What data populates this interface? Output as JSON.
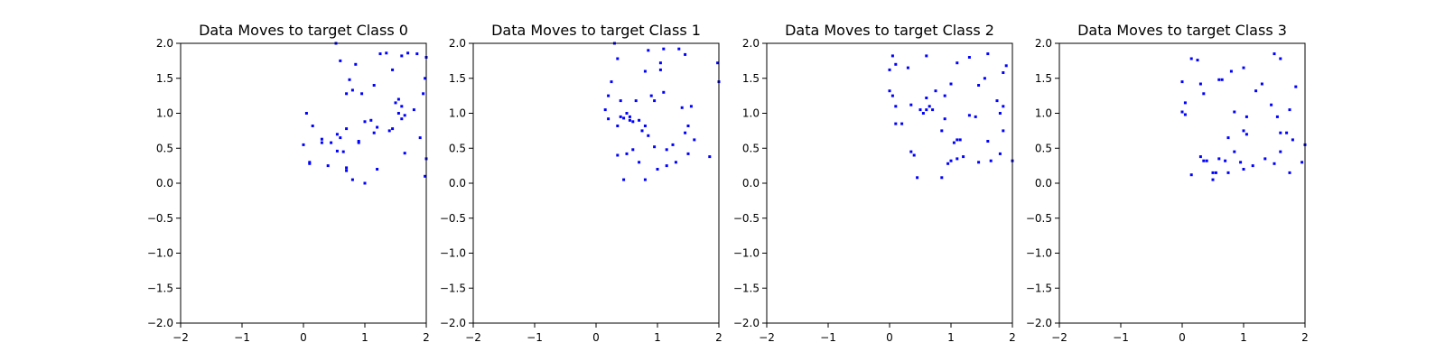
{
  "chart_data": [
    {
      "type": "scatter",
      "title": "Data Moves to target Class 0",
      "xlim": [
        -2,
        2
      ],
      "ylim": [
        -2,
        2
      ],
      "xticks": [
        "−2",
        "−1",
        "0",
        "1",
        "2"
      ],
      "yticks": [
        "2.0",
        "1.5",
        "1.0",
        "0.5",
        "0.0",
        "−0.5",
        "−1.0",
        "−1.5",
        "−2.0"
      ],
      "grid": false,
      "color": "#0000ff",
      "x": [
        0.53,
        0.6,
        0.7,
        0.75,
        1.1,
        1.15,
        1.35,
        1.45,
        1.55,
        1.6,
        1.7,
        1.85,
        2.0,
        1.98,
        0.05,
        0.15,
        0.1,
        0.3,
        0.45,
        0.55,
        0.65,
        0.8,
        0.85,
        0.7,
        0.95,
        1.0,
        1.15,
        1.25,
        1.4,
        1.55,
        1.6,
        1.65,
        1.8,
        1.9,
        2.0,
        0.0,
        0.4,
        0.6,
        0.7,
        0.9,
        1.0,
        1.2,
        1.5,
        1.65,
        1.95,
        0.1,
        0.3,
        0.55,
        0.7,
        0.8,
        0.9,
        1.2,
        1.6,
        1.98,
        1.45
      ],
      "y": [
        2.0,
        1.75,
        1.28,
        1.48,
        0.9,
        1.4,
        1.86,
        1.62,
        1.2,
        1.82,
        1.86,
        1.85,
        1.8,
        1.5,
        1.0,
        0.82,
        0.3,
        0.63,
        0.58,
        0.7,
        0.45,
        1.33,
        1.7,
        0.78,
        1.28,
        0.88,
        0.72,
        1.85,
        0.75,
        1.0,
        0.92,
        0.43,
        1.05,
        0.65,
        0.35,
        0.55,
        0.25,
        0.65,
        0.22,
        0.58,
        0.0,
        0.2,
        1.15,
        0.97,
        1.28,
        0.28,
        0.58,
        0.46,
        0.18,
        0.05,
        0.6,
        0.8,
        1.1,
        0.1,
        0.78
      ]
    },
    {
      "type": "scatter",
      "title": "Data Moves to target Class 1",
      "xlim": [
        -2,
        2
      ],
      "ylim": [
        -2,
        2
      ],
      "xticks": [
        "−2",
        "−1",
        "0",
        "1",
        "2"
      ],
      "yticks": [
        "2.0",
        "1.5",
        "1.0",
        "0.5",
        "0.0",
        "−0.5",
        "−1.0",
        "−1.5",
        "−2.0"
      ],
      "grid": false,
      "color": "#0000ff",
      "x": [
        0.3,
        0.35,
        0.8,
        0.85,
        1.05,
        1.1,
        1.35,
        1.45,
        1.98,
        2.0,
        0.15,
        0.2,
        0.4,
        0.5,
        0.55,
        0.65,
        0.7,
        0.8,
        0.9,
        0.95,
        1.05,
        1.1,
        1.4,
        1.5,
        0.2,
        0.35,
        0.45,
        0.55,
        0.6,
        0.75,
        0.85,
        0.95,
        1.15,
        1.25,
        1.45,
        1.55,
        1.6,
        1.85,
        0.25,
        0.45,
        0.5,
        0.6,
        0.8,
        1.0,
        1.3,
        1.5,
        0.35,
        0.7,
        1.15,
        0.4
      ],
      "y": [
        2.0,
        1.78,
        1.6,
        1.9,
        1.62,
        1.92,
        1.92,
        1.84,
        1.72,
        1.45,
        1.05,
        1.25,
        1.18,
        1.0,
        0.95,
        1.18,
        0.9,
        0.82,
        1.25,
        1.18,
        1.72,
        1.3,
        1.08,
        0.82,
        0.92,
        0.82,
        0.93,
        0.9,
        0.48,
        0.75,
        0.68,
        0.52,
        0.48,
        0.55,
        0.72,
        1.1,
        0.62,
        0.38,
        1.45,
        0.05,
        0.42,
        0.88,
        0.05,
        0.2,
        0.3,
        0.42,
        0.4,
        0.3,
        0.25,
        0.95
      ]
    },
    {
      "type": "scatter",
      "title": "Data Moves to target Class 2",
      "xlim": [
        -2,
        2
      ],
      "ylim": [
        -2,
        2
      ],
      "xticks": [
        "−2",
        "−1",
        "0",
        "1",
        "2"
      ],
      "yticks": [
        "2.0",
        "1.5",
        "1.0",
        "0.5",
        "0.0",
        "−0.5",
        "−1.0",
        "−1.5",
        "−2.0"
      ],
      "grid": false,
      "color": "#0000ff",
      "x": [
        0.05,
        0.1,
        0.3,
        0.6,
        1.1,
        1.3,
        1.6,
        1.85,
        1.9,
        0.0,
        0.05,
        0.1,
        0.2,
        0.35,
        0.5,
        0.55,
        0.65,
        0.75,
        0.9,
        1.0,
        1.1,
        1.2,
        1.45,
        1.55,
        1.75,
        1.85,
        0.0,
        0.1,
        0.35,
        0.4,
        0.6,
        0.85,
        0.9,
        1.05,
        1.15,
        1.3,
        1.45,
        1.65,
        1.8,
        1.85,
        2.0,
        0.45,
        0.85,
        0.95,
        1.0,
        1.1,
        1.4,
        1.6,
        1.8,
        0.7,
        0.6
      ],
      "y": [
        1.82,
        1.7,
        1.65,
        1.82,
        1.72,
        1.8,
        1.85,
        1.58,
        1.68,
        1.32,
        1.25,
        0.85,
        0.85,
        1.12,
        1.05,
        1.0,
        1.1,
        1.32,
        1.25,
        1.42,
        0.62,
        0.38,
        1.4,
        1.5,
        1.18,
        1.1,
        1.62,
        1.1,
        0.45,
        0.4,
        1.22,
        0.75,
        0.92,
        0.58,
        0.62,
        0.97,
        0.3,
        0.32,
        1.0,
        0.75,
        0.32,
        0.08,
        0.08,
        0.28,
        0.32,
        0.35,
        0.95,
        0.6,
        0.42,
        1.05,
        1.05
      ]
    },
    {
      "type": "scatter",
      "title": "Data Moves to target Class 3",
      "xlim": [
        -2,
        2
      ],
      "ylim": [
        -2,
        2
      ],
      "xticks": [
        "−2",
        "−1",
        "0",
        "1",
        "2"
      ],
      "yticks": [
        "2.0",
        "1.5",
        "1.0",
        "0.5",
        "0.0",
        "−0.5",
        "−1.0",
        "−1.5",
        "−2.0"
      ],
      "grid": false,
      "color": "#0000ff",
      "x": [
        0.15,
        0.25,
        0.65,
        0.8,
        1.0,
        1.5,
        1.6,
        0.0,
        0.05,
        0.3,
        0.35,
        0.6,
        0.75,
        0.85,
        1.05,
        1.2,
        1.3,
        1.45,
        1.6,
        1.75,
        1.85,
        0.0,
        0.05,
        0.4,
        0.55,
        0.7,
        1.0,
        1.05,
        1.15,
        1.55,
        1.6,
        1.7,
        1.8,
        1.95,
        2.0,
        0.15,
        0.35,
        0.5,
        0.6,
        0.75,
        0.95,
        1.0,
        1.35,
        1.5,
        1.75,
        0.3,
        0.5,
        0.85
      ],
      "y": [
        1.78,
        1.76,
        1.48,
        1.6,
        1.65,
        1.85,
        1.78,
        1.45,
        1.15,
        1.42,
        1.28,
        1.48,
        0.65,
        1.02,
        0.95,
        1.32,
        1.42,
        1.12,
        0.72,
        1.05,
        1.38,
        1.02,
        0.98,
        0.32,
        0.15,
        0.32,
        0.75,
        0.7,
        0.25,
        0.95,
        0.45,
        0.72,
        0.62,
        0.3,
        0.55,
        0.12,
        0.32,
        0.05,
        0.35,
        0.15,
        0.3,
        0.2,
        0.35,
        0.28,
        0.15,
        0.38,
        0.15,
        0.45
      ]
    }
  ]
}
